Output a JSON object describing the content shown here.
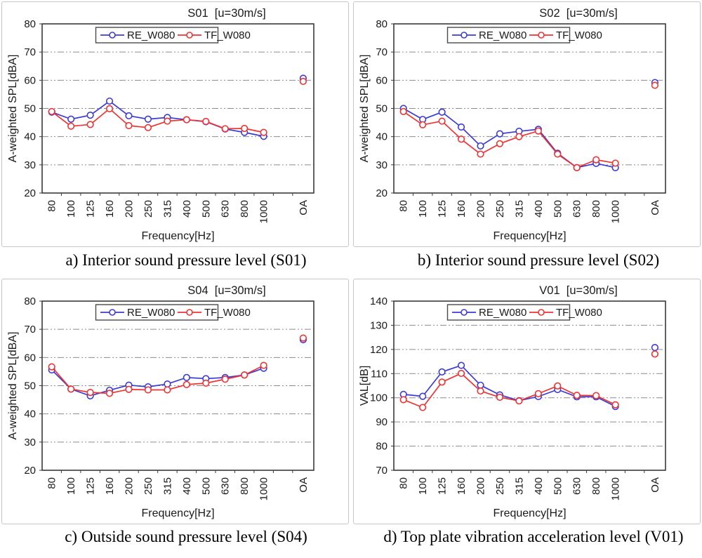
{
  "colors": {
    "series_re": "#3b3bd6",
    "series_tf": "#ee3333",
    "grid": "#8c8c8c",
    "axis": "#3a3a3a",
    "legend_border": "#4a4a4a",
    "panel_border": "#c6c6c6",
    "text": "#1a1a1a",
    "background": "#ffffff"
  },
  "legend": {
    "position": "top-center-inside",
    "items": [
      {
        "label": "RE_W080",
        "color": "#3b3bd6",
        "marker": "circle-icon"
      },
      {
        "label": "TF_W080",
        "color": "#ee3333",
        "marker": "circle-icon"
      }
    ]
  },
  "chart_data": [
    {
      "id": "S01",
      "type": "line",
      "title": "S01  [u=30m/s]",
      "xlabel": "Frequency[Hz]",
      "ylabel": "A-weighted SPL[dBA]",
      "ylim": [
        20,
        80
      ],
      "ytick_step": 10,
      "grid": "horizontal-dash-dot",
      "legend_position": "top-center-inside",
      "categories": [
        "80",
        "100",
        "125",
        "160",
        "200",
        "250",
        "315",
        "400",
        "500",
        "630",
        "800",
        "1000"
      ],
      "oa_category": "OA",
      "series": [
        {
          "name": "RE_W080",
          "color": "#3b3bd6",
          "values": [
            48.7,
            46.2,
            47.6,
            52.6,
            47.4,
            46.2,
            46.8,
            46.0,
            45.3,
            42.7,
            41.5,
            40.1
          ],
          "oa": 60.7
        },
        {
          "name": "TF_W080",
          "color": "#ee3333",
          "values": [
            48.9,
            43.7,
            44.3,
            49.9,
            43.9,
            43.2,
            45.5,
            46.0,
            45.4,
            42.8,
            42.9,
            41.5
          ],
          "oa": 59.6
        }
      ],
      "caption": "a) Interior sound pressure level (S01)"
    },
    {
      "id": "S02",
      "type": "line",
      "title": "S02  [u=30m/s]",
      "xlabel": "Frequency[Hz]",
      "ylabel": "A-weighted SPL[dBA]",
      "ylim": [
        20,
        80
      ],
      "ytick_step": 10,
      "grid": "horizontal-dash-dot",
      "legend_position": "top-center-inside",
      "categories": [
        "80",
        "100",
        "125",
        "160",
        "200",
        "250",
        "315",
        "400",
        "500",
        "630",
        "800",
        "1000"
      ],
      "oa_category": "OA",
      "series": [
        {
          "name": "RE_W080",
          "color": "#3b3bd6",
          "values": [
            50.0,
            46.1,
            48.7,
            43.4,
            36.7,
            41.0,
            41.9,
            42.6,
            34.1,
            29.0,
            30.5,
            29.0
          ],
          "oa": 59.2
        },
        {
          "name": "TF_W080",
          "color": "#ee3333",
          "values": [
            48.9,
            44.2,
            45.5,
            39.1,
            33.8,
            37.5,
            40.0,
            42.0,
            33.8,
            29.0,
            31.8,
            30.6
          ],
          "oa": 58.2
        }
      ],
      "caption": "b) Interior sound pressure level (S02)"
    },
    {
      "id": "S04",
      "type": "line",
      "title": "S04  [u=30m/s]",
      "xlabel": "Frequency[Hz]",
      "ylabel": "A-weighted SPL[dBA]",
      "ylim": [
        20,
        80
      ],
      "ytick_step": 10,
      "grid": "horizontal-dash-dot",
      "legend_position": "top-center-inside",
      "categories": [
        "80",
        "100",
        "125",
        "160",
        "200",
        "250",
        "315",
        "400",
        "500",
        "630",
        "800",
        "1000"
      ],
      "oa_category": "OA",
      "series": [
        {
          "name": "RE_W080",
          "color": "#3b3bd6",
          "values": [
            55.6,
            48.8,
            46.4,
            48.4,
            50.2,
            49.6,
            50.6,
            52.9,
            52.5,
            52.9,
            53.8,
            56.2
          ],
          "oa": 66.3
        },
        {
          "name": "TF_W080",
          "color": "#ee3333",
          "values": [
            56.7,
            48.8,
            47.6,
            47.3,
            48.7,
            48.5,
            48.5,
            50.4,
            50.9,
            52.3,
            53.8,
            57.2
          ],
          "oa": 66.9
        }
      ],
      "caption": "c) Outside sound pressure level (S04)"
    },
    {
      "id": "V01",
      "type": "line",
      "title": "V01  [u=30m/s]",
      "xlabel": "Frequency[Hz]",
      "ylabel": "VAL[dB]",
      "ylim": [
        70,
        140
      ],
      "ytick_step": 10,
      "grid": "horizontal-dash-dot",
      "legend_position": "top-center-inside",
      "categories": [
        "80",
        "100",
        "125",
        "160",
        "200",
        "250",
        "315",
        "400",
        "500",
        "630",
        "800",
        "1000"
      ],
      "oa_category": "OA",
      "series": [
        {
          "name": "RE_W080",
          "color": "#3b3bd6",
          "values": [
            101.4,
            100.6,
            110.7,
            113.4,
            105.2,
            101.2,
            98.8,
            100.5,
            103.4,
            100.4,
            100.4,
            96.4
          ],
          "oa": 120.8
        },
        {
          "name": "TF_W080",
          "color": "#ee3333",
          "values": [
            99.2,
            96.0,
            106.5,
            110.1,
            102.8,
            100.2,
            98.7,
            101.7,
            104.9,
            101.0,
            100.9,
            97.1
          ],
          "oa": 118.1
        }
      ],
      "caption": "d) Top plate vibration acceleration level (V01)"
    }
  ]
}
